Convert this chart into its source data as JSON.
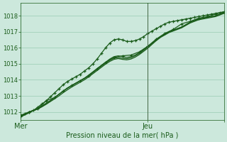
{
  "background_color": "#cce8dc",
  "plot_bg_color": "#cce8dc",
  "grid_color": "#99ccb3",
  "line_color": "#1a5c1a",
  "marker_color": "#1a5c1a",
  "axis_label_color": "#1a5c1a",
  "tick_label_color": "#1a5c1a",
  "xlabel": "Pression niveau de la mer( hPa )",
  "ylim": [
    1011.5,
    1018.8
  ],
  "xlim": [
    0,
    48
  ],
  "yticks": [
    1012,
    1013,
    1014,
    1015,
    1016,
    1017,
    1018
  ],
  "xtick_positions": [
    0,
    30,
    48
  ],
  "xtick_labels": [
    "Mer",
    "Jeu",
    ""
  ],
  "vline_x": 30,
  "figsize": [
    3.2,
    2.0
  ],
  "dpi": 100,
  "series": [
    {
      "x": [
        0,
        1,
        2,
        3,
        4,
        5,
        6,
        7,
        8,
        9,
        10,
        11,
        12,
        13,
        14,
        15,
        16,
        17,
        18,
        19,
        20,
        21,
        22,
        23,
        24,
        25,
        26,
        27,
        28,
        29,
        30,
        31,
        32,
        33,
        34,
        35,
        36,
        37,
        38,
        39,
        40,
        41,
        42,
        43,
        44,
        45,
        46,
        47,
        48
      ],
      "y": [
        1011.8,
        1011.9,
        1012.0,
        1012.1,
        1012.3,
        1012.5,
        1012.7,
        1012.95,
        1013.2,
        1013.45,
        1013.7,
        1013.9,
        1014.05,
        1014.2,
        1014.35,
        1014.55,
        1014.75,
        1015.0,
        1015.3,
        1015.65,
        1016.0,
        1016.3,
        1016.5,
        1016.55,
        1016.5,
        1016.4,
        1016.4,
        1016.45,
        1016.55,
        1016.7,
        1016.9,
        1017.05,
        1017.2,
        1017.35,
        1017.5,
        1017.6,
        1017.65,
        1017.7,
        1017.75,
        1017.8,
        1017.85,
        1017.9,
        1017.95,
        1018.0,
        1018.05,
        1018.1,
        1018.15,
        1018.2,
        1018.25
      ],
      "marker": true,
      "linewidth": 0.9
    },
    {
      "x": [
        0,
        1,
        2,
        3,
        4,
        5,
        6,
        7,
        8,
        9,
        10,
        11,
        12,
        13,
        14,
        15,
        16,
        17,
        18,
        19,
        20,
        21,
        22,
        23,
        24,
        25,
        26,
        27,
        28,
        29,
        30,
        31,
        32,
        33,
        34,
        35,
        36,
        37,
        38,
        39,
        40,
        41,
        42,
        43,
        44,
        45,
        46,
        47,
        48
      ],
      "y": [
        1011.7,
        1011.85,
        1012.0,
        1012.1,
        1012.2,
        1012.35,
        1012.5,
        1012.7,
        1012.9,
        1013.1,
        1013.3,
        1013.5,
        1013.65,
        1013.8,
        1013.95,
        1014.1,
        1014.3,
        1014.5,
        1014.7,
        1014.9,
        1015.1,
        1015.3,
        1015.45,
        1015.5,
        1015.45,
        1015.4,
        1015.45,
        1015.55,
        1015.7,
        1015.9,
        1016.1,
        1016.3,
        1016.5,
        1016.7,
        1016.85,
        1017.0,
        1017.1,
        1017.2,
        1017.3,
        1017.45,
        1017.6,
        1017.7,
        1017.8,
        1017.85,
        1017.9,
        1017.95,
        1018.0,
        1018.1,
        1018.2
      ],
      "marker": false,
      "linewidth": 0.9
    },
    {
      "x": [
        0,
        1,
        2,
        3,
        4,
        5,
        6,
        7,
        8,
        9,
        10,
        11,
        12,
        13,
        14,
        15,
        16,
        17,
        18,
        19,
        20,
        21,
        22,
        23,
        24,
        25,
        26,
        27,
        28,
        29,
        30,
        31,
        32,
        33,
        34,
        35,
        36,
        37,
        38,
        39,
        40,
        41,
        42,
        43,
        44,
        45,
        46,
        47,
        48
      ],
      "y": [
        1011.75,
        1011.88,
        1012.0,
        1012.1,
        1012.22,
        1012.38,
        1012.55,
        1012.72,
        1012.9,
        1013.1,
        1013.3,
        1013.48,
        1013.63,
        1013.78,
        1013.93,
        1014.08,
        1014.25,
        1014.45,
        1014.65,
        1014.85,
        1015.05,
        1015.22,
        1015.35,
        1015.4,
        1015.35,
        1015.32,
        1015.38,
        1015.5,
        1015.65,
        1015.85,
        1016.05,
        1016.28,
        1016.5,
        1016.7,
        1016.85,
        1017.0,
        1017.1,
        1017.2,
        1017.3,
        1017.45,
        1017.6,
        1017.7,
        1017.8,
        1017.85,
        1017.9,
        1017.95,
        1018.0,
        1018.1,
        1018.2
      ],
      "marker": false,
      "linewidth": 0.9
    },
    {
      "x": [
        0,
        1,
        2,
        3,
        4,
        5,
        6,
        7,
        8,
        9,
        10,
        11,
        12,
        13,
        14,
        15,
        16,
        17,
        18,
        19,
        20,
        21,
        22,
        23,
        24,
        25,
        26,
        27,
        28,
        29,
        30,
        31,
        32,
        33,
        34,
        35,
        36,
        37,
        38,
        39,
        40,
        41,
        42,
        43,
        44,
        45,
        46,
        47,
        48
      ],
      "y": [
        1011.7,
        1011.82,
        1011.95,
        1012.08,
        1012.18,
        1012.32,
        1012.48,
        1012.65,
        1012.82,
        1013.0,
        1013.2,
        1013.38,
        1013.55,
        1013.7,
        1013.85,
        1014.0,
        1014.18,
        1014.38,
        1014.58,
        1014.78,
        1014.98,
        1015.15,
        1015.28,
        1015.33,
        1015.28,
        1015.25,
        1015.3,
        1015.42,
        1015.58,
        1015.78,
        1015.98,
        1016.22,
        1016.45,
        1016.65,
        1016.8,
        1016.95,
        1017.05,
        1017.15,
        1017.25,
        1017.4,
        1017.55,
        1017.65,
        1017.75,
        1017.8,
        1017.85,
        1017.9,
        1017.95,
        1018.05,
        1018.15
      ],
      "marker": false,
      "linewidth": 0.9
    },
    {
      "x": [
        0,
        2,
        4,
        6,
        8,
        10,
        12,
        14,
        16,
        18,
        20,
        22,
        24,
        26,
        28,
        30,
        32,
        34,
        36,
        38,
        40,
        42,
        44,
        46,
        48
      ],
      "y": [
        1011.7,
        1012.0,
        1012.2,
        1012.7,
        1012.9,
        1013.3,
        1013.65,
        1013.95,
        1014.25,
        1014.7,
        1015.1,
        1015.4,
        1015.5,
        1015.55,
        1015.75,
        1016.1,
        1016.55,
        1016.9,
        1017.15,
        1017.5,
        1017.65,
        1017.85,
        1017.95,
        1018.1,
        1018.25
      ],
      "marker": true,
      "linewidth": 0.9
    }
  ]
}
